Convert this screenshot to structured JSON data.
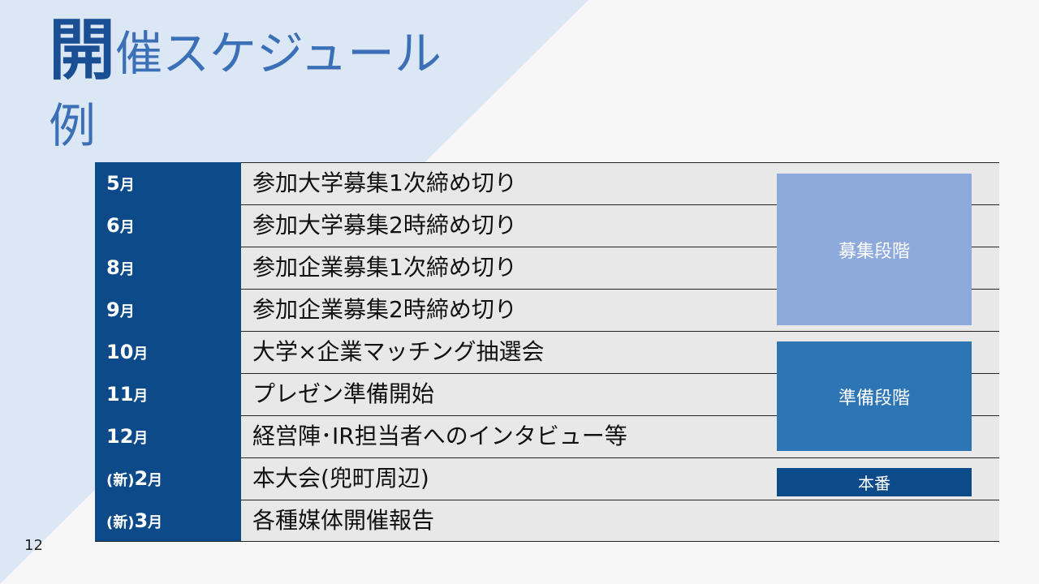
{
  "title": {
    "lead_char": "開",
    "rest_line1": "催スケジュール",
    "line2": "例"
  },
  "page_number": "12",
  "schedule": [
    {
      "month_num": "5",
      "month_suffix": "月",
      "event": "参加大学募集1次締め切り"
    },
    {
      "month_num": "6",
      "month_suffix": "月",
      "event": "参加大学募集2時締め切り"
    },
    {
      "month_num": "8",
      "month_suffix": "月",
      "event": "参加企業募集1次締め切り"
    },
    {
      "month_num": "9",
      "month_suffix": "月",
      "event": "参加企業募集2時締め切り"
    },
    {
      "month_num": "10",
      "month_suffix": "月",
      "event": "大学×企業マッチング抽選会"
    },
    {
      "month_num": "11",
      "month_suffix": "月",
      "event": "プレゼン準備開始"
    },
    {
      "month_num": "12",
      "month_suffix": "月",
      "event": "経営陣･IR担当者へのインタビュー等"
    },
    {
      "month_prefix": "(新)",
      "month_num": "2",
      "month_suffix": "月",
      "event": "本大会(兜町周辺)"
    },
    {
      "month_prefix": "(新)",
      "month_num": "3",
      "month_suffix": "月",
      "event": "各種媒体開催報告"
    }
  ],
  "phases": {
    "recruit": "募集段階",
    "prep": "準備段階",
    "main": "本番"
  },
  "colors": {
    "navy": "#0c4a8a",
    "title_blue": "#3b6fb6",
    "recruit": "#8eaadd",
    "prep": "#2e75b6",
    "triangle": "#dce7f5"
  }
}
